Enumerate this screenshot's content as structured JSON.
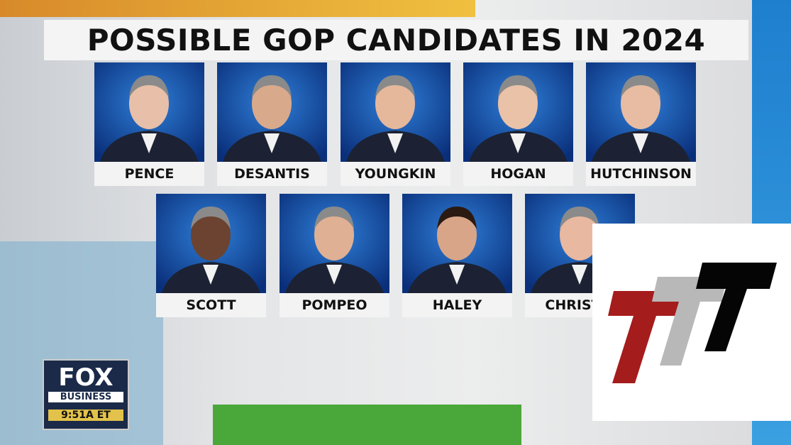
{
  "header": {
    "title": "POSSIBLE GOP CANDIDATES IN 2024"
  },
  "candidates": [
    {
      "name": "PENCE"
    },
    {
      "name": "DESANTIS"
    },
    {
      "name": "YOUNGKIN"
    },
    {
      "name": "HOGAN"
    },
    {
      "name": "HUTCHINSON"
    },
    {
      "name": "SCOTT"
    },
    {
      "name": "POMPEO"
    },
    {
      "name": "HALEY"
    },
    {
      "name": "CHRISTIE"
    }
  ],
  "network_bug": {
    "logo": "FOX",
    "channel": "BUSINESS",
    "time": "9:51A ET"
  }
}
